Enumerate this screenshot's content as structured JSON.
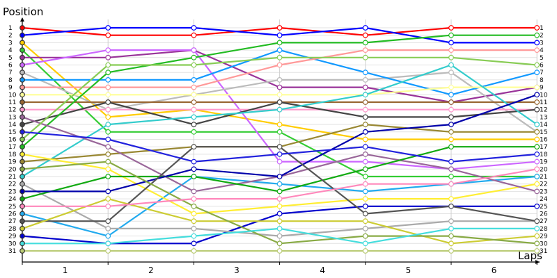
{
  "chart_data": {
    "type": "line",
    "ylabel": "Position",
    "xlabel": "Laps",
    "x": [
      0,
      1,
      2,
      3,
      4,
      5,
      6
    ],
    "x_tick_labels": [
      "1",
      "2",
      "3",
      "4",
      "5",
      "6"
    ],
    "y_tick_labels": [
      "1",
      "2",
      "3",
      "4",
      "5",
      "6",
      "7",
      "8",
      "9",
      "10",
      "11",
      "12",
      "13",
      "14",
      "15",
      "16",
      "17",
      "18",
      "19",
      "20",
      "21",
      "22",
      "23",
      "24",
      "25",
      "26",
      "27",
      "28",
      "29",
      "30",
      "31"
    ],
    "ylim": [
      1,
      31
    ],
    "y_inverted": true,
    "grid": true,
    "series": [
      {
        "color": "#ff0000",
        "values": [
          1,
          2,
          2,
          1,
          2,
          1,
          1
        ]
      },
      {
        "color": "#0000ff",
        "values": [
          2,
          1,
          1,
          2,
          1,
          3,
          3
        ]
      },
      {
        "color": "#ffcc00",
        "values": [
          3,
          13,
          12,
          14,
          16,
          16,
          16
        ]
      },
      {
        "color": "#33cc33",
        "values": [
          4,
          15,
          15,
          15,
          21,
          21,
          21
        ]
      },
      {
        "color": "#993399",
        "values": [
          5,
          5,
          4,
          9,
          9,
          11,
          9
        ]
      },
      {
        "color": "#cc66ff",
        "values": [
          6,
          4,
          4,
          19,
          19,
          20,
          19
        ]
      },
      {
        "color": "#bbbbbb",
        "values": [
          7,
          12,
          10,
          8,
          8,
          7,
          15
        ]
      },
      {
        "color": "#1199ff",
        "values": [
          8,
          8,
          8,
          4,
          7,
          10,
          7
        ]
      },
      {
        "color": "#ff9999",
        "values": [
          9,
          9,
          9,
          6,
          4,
          4,
          4
        ]
      },
      {
        "color": "#ffff99",
        "values": [
          10,
          10,
          10,
          10,
          10,
          9,
          9
        ]
      },
      {
        "color": "#996633",
        "values": [
          11,
          11,
          11,
          11,
          11,
          11,
          11
        ]
      },
      {
        "color": "#ff99cc",
        "values": [
          12,
          12,
          12,
          12,
          12,
          12,
          12
        ]
      },
      {
        "color": "#444444",
        "values": [
          14,
          11,
          14,
          11,
          13,
          13,
          12
        ]
      },
      {
        "color": "#33cccc",
        "values": [
          21,
          14,
          13,
          12,
          10,
          6,
          14
        ]
      },
      {
        "color": "#bbcc77",
        "values": [
          31,
          31,
          31,
          31,
          31,
          31,
          31
        ]
      },
      {
        "color": "#0000cc",
        "values": [
          29,
          30,
          30,
          26,
          25,
          25,
          25
        ]
      },
      {
        "color": "#998833",
        "values": [
          19,
          18,
          17,
          17,
          14,
          15,
          15
        ]
      },
      {
        "color": "#22bb22",
        "values": [
          17,
          7,
          5,
          3,
          3,
          2,
          2
        ]
      },
      {
        "color": "#22aaee",
        "values": [
          26,
          29,
          21,
          22,
          23,
          22,
          21
        ]
      },
      {
        "color": "#ffee33",
        "values": [
          18,
          20,
          26,
          25,
          24,
          24,
          22
        ]
      },
      {
        "color": "#aaaaaa",
        "values": [
          22,
          28,
          28,
          29,
          28,
          27,
          27
        ]
      },
      {
        "color": "#996699",
        "values": [
          13,
          17,
          23,
          21,
          18,
          20,
          23
        ]
      },
      {
        "color": "#11aa11",
        "values": [
          24,
          21,
          21,
          23,
          20,
          17,
          17
        ]
      },
      {
        "color": "#0000aa",
        "values": [
          23,
          23,
          20,
          21,
          15,
          14,
          10
        ]
      },
      {
        "color": "#555555",
        "values": [
          27,
          27,
          17,
          17,
          26,
          25,
          27
        ]
      },
      {
        "color": "#cccc33",
        "values": [
          28,
          24,
          27,
          27,
          27,
          30,
          29
        ]
      },
      {
        "color": "#88aa44",
        "values": [
          20,
          19,
          25,
          30,
          29,
          29,
          30
        ]
      },
      {
        "color": "#ff88bb",
        "values": [
          25,
          25,
          24,
          24,
          22,
          22,
          20
        ]
      },
      {
        "color": "#44dddd",
        "values": [
          30,
          30,
          29,
          28,
          30,
          28,
          28
        ]
      },
      {
        "color": "#88cc55",
        "values": [
          16,
          6,
          6,
          5,
          5,
          5,
          6
        ]
      },
      {
        "color": "#2222dd",
        "values": [
          15,
          16,
          19,
          18,
          17,
          19,
          18
        ]
      }
    ]
  }
}
